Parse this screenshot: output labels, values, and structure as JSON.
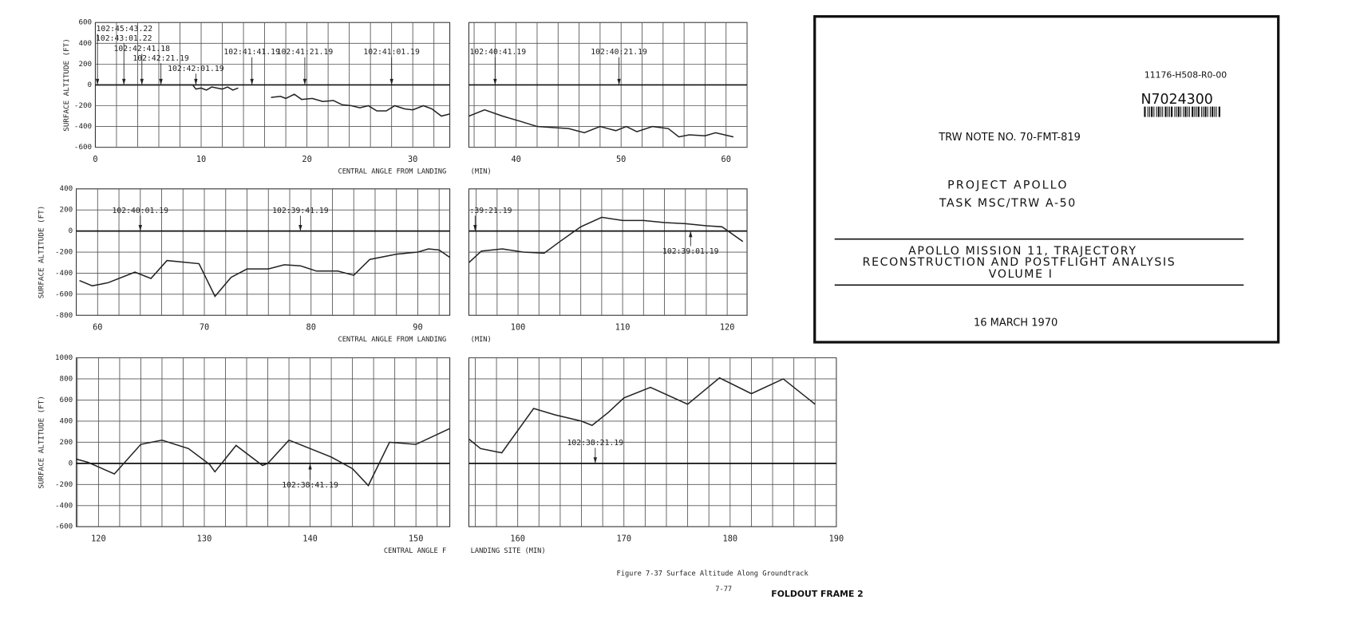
{
  "chart_data": [
    {
      "type": "line",
      "ylabel": "SURFACE ALTITUDE (FT)",
      "xlabel": "CENTRAL ANGLE FROM LANDING",
      "xlim": [
        0,
        33.5
      ],
      "xticks": [
        0,
        10,
        20,
        30
      ],
      "xgrid": [
        2,
        4,
        6,
        8,
        10,
        12,
        14,
        16,
        18,
        20,
        22,
        24,
        26,
        28,
        30,
        32
      ],
      "ylim": [
        -600,
        600
      ],
      "yticks": [
        600,
        400,
        200,
        0,
        -200,
        -400,
        -600
      ],
      "series": [
        {
          "color": "#222222",
          "x": [
            0,
            2,
            4,
            6,
            8,
            9.2,
            9.5,
            10,
            10.5,
            11,
            11.5,
            12,
            12.5,
            13,
            13.5,
            null,
            16.6,
            17.5,
            18,
            18.8,
            19.5,
            20.5,
            21.5,
            22.5,
            23.3,
            24.2,
            25,
            25.8,
            26.6,
            27.5,
            28.3,
            29.2,
            30,
            31,
            31.8,
            32.7,
            33.5
          ],
          "values": [
            0,
            0,
            0,
            0,
            0,
            0,
            -40,
            -30,
            -50,
            -20,
            -30,
            -40,
            -20,
            -50,
            -30,
            null,
            -120,
            -110,
            -130,
            -90,
            -140,
            -130,
            -160,
            -150,
            -190,
            -200,
            -220,
            -200,
            -250,
            -250,
            -200,
            -230,
            -240,
            -200,
            -230,
            -300,
            -280
          ]
        }
      ],
      "annotations": [
        {
          "text": "102:45:43.22",
          "x": 0.2
        },
        {
          "text": "102:43:01.22",
          "x": 2.7
        },
        {
          "text": "102:42:41.18",
          "x": 4.4
        },
        {
          "text": "102:42:21.19",
          "x": 6.2
        },
        {
          "text": "102:42:01.19",
          "x": 9.5
        },
        {
          "text": "102:41:41.19",
          "x": 14.8
        },
        {
          "text": "102:41:21.19",
          "x": 19.8
        },
        {
          "text": "102:41:01.19",
          "x": 28
        }
      ]
    },
    {
      "type": "line",
      "xlabel": "(MIN)",
      "xlim": [
        35.5,
        62
      ],
      "xticks": [
        40,
        50,
        60
      ],
      "xgrid": [
        36,
        38,
        40,
        42,
        44,
        46,
        48,
        50,
        52,
        54,
        56,
        58,
        60,
        62
      ],
      "ylim": [
        -600,
        600
      ],
      "ygrid": [
        600,
        400,
        200,
        0,
        -200,
        -400,
        -600
      ],
      "series": [
        {
          "color": "#222222",
          "x": [
            35.5,
            37,
            38.7,
            40.4,
            42,
            43.5,
            45,
            46.5,
            48,
            49.5,
            50.5,
            51.5,
            53,
            54.5,
            55.5,
            56.5,
            58,
            59,
            60.7
          ],
          "values": [
            -300,
            -240,
            -300,
            -350,
            -400,
            -410,
            -420,
            -460,
            -400,
            -440,
            -400,
            -450,
            -400,
            -420,
            -500,
            -480,
            -490,
            -460,
            -500
          ]
        }
      ],
      "annotations": [
        {
          "text": "102:40:41.19",
          "x": 38
        },
        {
          "text": "102:40:21.19",
          "x": 49.8
        }
      ]
    },
    {
      "type": "line",
      "ylabel": "SURFACE ALTITUDE (FT)",
      "xlabel": "CENTRAL ANGLE FROM LANDING",
      "xlim": [
        58,
        93
      ],
      "xticks": [
        60,
        70,
        80,
        90
      ],
      "xgrid": [
        60,
        62,
        64,
        66,
        68,
        70,
        72,
        74,
        76,
        78,
        80,
        82,
        84,
        86,
        88,
        90,
        92
      ],
      "ylim": [
        -800,
        400
      ],
      "yticks": [
        400,
        200,
        0,
        -200,
        -400,
        -600,
        -800
      ],
      "series": [
        {
          "color": "#222222",
          "x": [
            58.3,
            59.5,
            61,
            63.5,
            65,
            66.5,
            69.5,
            71,
            72.5,
            74,
            76,
            77.5,
            79,
            80.5,
            82.5,
            84,
            85.5,
            88,
            90,
            91,
            92,
            93
          ],
          "values": [
            -470,
            -520,
            -490,
            -390,
            -450,
            -280,
            -310,
            -620,
            -440,
            -360,
            -360,
            -320,
            -330,
            -380,
            -380,
            -420,
            -270,
            -220,
            -200,
            -170,
            -180,
            -250
          ]
        }
      ],
      "annotations": [
        {
          "text": "102:40:01.19",
          "x": 64
        },
        {
          "text": "102:39:41.19",
          "x": 79
        }
      ]
    },
    {
      "type": "line",
      "xlabel": "(MIN)",
      "xlim": [
        95.3,
        121.9
      ],
      "xticks": [
        100,
        110,
        120
      ],
      "xgrid": [
        96,
        98,
        100,
        102,
        104,
        106,
        108,
        110,
        112,
        114,
        116,
        118,
        120
      ],
      "ylim": [
        -800,
        400
      ],
      "ygrid": [
        400,
        200,
        0,
        -200,
        -400,
        -600,
        -800
      ],
      "series": [
        {
          "color": "#222222",
          "x": [
            95.3,
            96.5,
            98.5,
            100.5,
            102.5,
            104,
            106,
            108,
            110,
            112,
            114,
            116,
            118,
            119.5,
            121.5
          ],
          "values": [
            -300,
            -190,
            -170,
            -200,
            -210,
            -100,
            40,
            130,
            100,
            100,
            80,
            70,
            50,
            40,
            -100
          ]
        }
      ],
      "annotations": [
        {
          "text": ":39:21.19",
          "x": 95.9
        },
        {
          "text": "102:39:01.19",
          "x": 116.5
        }
      ]
    },
    {
      "type": "line",
      "ylabel": "SURFACE ALTITUDE (FT)",
      "xlabel": "CENTRAL ANGLE F",
      "xlim": [
        117.9,
        153.2
      ],
      "xticks": [
        120,
        130,
        140,
        150
      ],
      "xgrid": [
        118,
        120,
        122,
        124,
        126,
        128,
        130,
        132,
        134,
        136,
        138,
        140,
        142,
        144,
        146,
        148,
        150,
        152
      ],
      "ylim": [
        -600,
        1000
      ],
      "yticks": [
        1000,
        800,
        600,
        400,
        200,
        0,
        -200,
        -400,
        -600
      ],
      "series": [
        {
          "color": "#222222",
          "x": [
            117.9,
            119,
            121.5,
            124,
            126,
            128.5,
            130.5,
            131,
            133,
            135.5,
            136,
            138,
            140,
            142,
            144,
            145.5,
            147.5,
            150,
            153.2
          ],
          "values": [
            40,
            10,
            -100,
            180,
            220,
            140,
            -10,
            -80,
            170,
            -20,
            0,
            220,
            140,
            60,
            -50,
            -210,
            200,
            180,
            330
          ]
        }
      ],
      "annotations": [
        {
          "text": "102:38:41.19",
          "x": 140
        }
      ]
    },
    {
      "type": "line",
      "xlabel": "LANDING SITE (MIN)",
      "xlim": [
        155.4,
        190
      ],
      "xticks": [
        160,
        170,
        180,
        190
      ],
      "xgrid": [
        156,
        158,
        160,
        162,
        164,
        166,
        168,
        170,
        172,
        174,
        176,
        178,
        180,
        182,
        184,
        186,
        188,
        190
      ],
      "ylim": [
        -600,
        1000
      ],
      "ygrid": [
        1000,
        800,
        600,
        400,
        200,
        0,
        -200,
        -400,
        -600
      ],
      "series": [
        {
          "color": "#222222",
          "x": [
            155.4,
            156.5,
            158.5,
            161.5,
            163.5,
            166,
            167,
            168.5,
            170,
            172.5,
            176,
            179,
            182,
            185,
            188
          ],
          "values": [
            230,
            140,
            100,
            520,
            460,
            400,
            360,
            480,
            620,
            720,
            560,
            810,
            660,
            800,
            560
          ]
        }
      ],
      "annotations": [
        {
          "text": "102:38:21.19",
          "x": 167.3
        }
      ]
    }
  ],
  "document": {
    "code": "11176-H508-R0-00",
    "accession": "N7024300",
    "note": "TRW NOTE NO. 70-FMT-819",
    "project": "PROJECT APOLLO",
    "task": "TASK MSC/TRW A-50",
    "title": [
      "APOLLO MISSION 11, TRAJECTORY",
      "RECONSTRUCTION AND POSTFLIGHT ANALYSIS",
      "VOLUME I"
    ],
    "date": "16 MARCH 1970"
  },
  "footer": {
    "caption": "Figure 7-37  Surface Altitude Along Groundtrack",
    "page": "7-77",
    "frame": "FOLDOUT FRAME 2"
  }
}
